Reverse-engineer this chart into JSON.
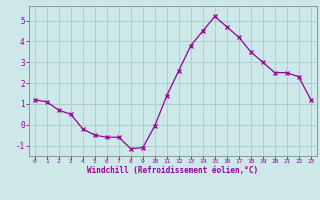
{
  "x": [
    0,
    1,
    2,
    3,
    4,
    5,
    6,
    7,
    8,
    9,
    10,
    11,
    12,
    13,
    14,
    15,
    16,
    17,
    18,
    19,
    20,
    21,
    22,
    23
  ],
  "y": [
    1.2,
    1.1,
    0.7,
    0.5,
    -0.2,
    -0.5,
    -0.6,
    -0.6,
    -1.15,
    -1.1,
    -0.05,
    1.4,
    2.6,
    3.8,
    4.5,
    5.2,
    4.7,
    4.2,
    3.5,
    3.0,
    2.5,
    2.5,
    2.3,
    1.2
  ],
  "line_color": "#990099",
  "marker": "x",
  "marker_size": 3,
  "background_color": "#cce8e8",
  "grid_color": "#aacece",
  "xlabel": "Windchill (Refroidissement éolien,°C)",
  "xlim": [
    -0.5,
    23.5
  ],
  "ylim": [
    -1.5,
    5.7
  ],
  "yticks": [
    -1,
    0,
    1,
    2,
    3,
    4,
    5
  ],
  "xticks": [
    0,
    1,
    2,
    3,
    4,
    5,
    6,
    7,
    8,
    9,
    10,
    11,
    12,
    13,
    14,
    15,
    16,
    17,
    18,
    19,
    20,
    21,
    22,
    23
  ],
  "tick_color": "#990099",
  "label_color": "#990099",
  "spine_color": "#888888"
}
